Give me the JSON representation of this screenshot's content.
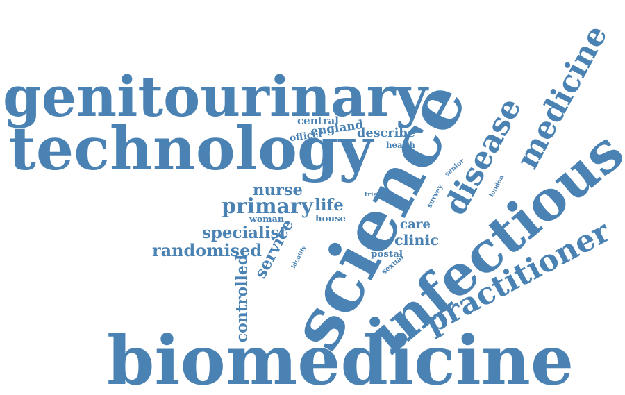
{
  "colors": {
    "word": "#4a82b3",
    "background": "#ffffff"
  },
  "words": [
    {
      "id": "genitourinary",
      "text": "genitourinary",
      "weight": 0.92,
      "rotation": 0
    },
    {
      "id": "technology",
      "text": "technology",
      "weight": 0.95,
      "rotation": 0
    },
    {
      "id": "biomedicine",
      "text": "biomedicine",
      "weight": 1.0,
      "rotation": 0
    },
    {
      "id": "science",
      "text": "science",
      "weight": 1.0,
      "rotation": -62
    },
    {
      "id": "infectious",
      "text": "infectious",
      "weight": 0.82,
      "rotation": -40
    },
    {
      "id": "medicine",
      "text": "medicine",
      "weight": 0.62,
      "rotation": -62
    },
    {
      "id": "disease",
      "text": "disease",
      "weight": 0.58,
      "rotation": -62
    },
    {
      "id": "practitioner",
      "text": "practitioner",
      "weight": 0.55,
      "rotation": -28
    },
    {
      "id": "primary",
      "text": "primary",
      "weight": 0.26,
      "rotation": 0
    },
    {
      "id": "randomised",
      "text": "randomised",
      "weight": 0.24,
      "rotation": 0
    },
    {
      "id": "nurse",
      "text": "nurse",
      "weight": 0.2,
      "rotation": 0
    },
    {
      "id": "specialist",
      "text": "specialist",
      "weight": 0.2,
      "rotation": 0
    },
    {
      "id": "life",
      "text": "life",
      "weight": 0.22,
      "rotation": 0
    },
    {
      "id": "service",
      "text": "service",
      "weight": 0.2,
      "rotation": -62
    },
    {
      "id": "controlled",
      "text": "controlled",
      "weight": 0.18,
      "rotation": -90
    },
    {
      "id": "clinic",
      "text": "clinic",
      "weight": 0.2,
      "rotation": 0
    },
    {
      "id": "care",
      "text": "care",
      "weight": 0.17,
      "rotation": 0
    },
    {
      "id": "describe",
      "text": "describe",
      "weight": 0.17,
      "rotation": 0
    },
    {
      "id": "england",
      "text": "england",
      "weight": 0.15,
      "rotation": -8
    },
    {
      "id": "central",
      "text": "central",
      "weight": 0.13,
      "rotation": 0
    },
    {
      "id": "officer",
      "text": "officer",
      "weight": 0.12,
      "rotation": -8
    },
    {
      "id": "health",
      "text": "health",
      "weight": 0.12,
      "rotation": 0
    },
    {
      "id": "woman",
      "text": "woman",
      "weight": 0.12,
      "rotation": 0
    },
    {
      "id": "house",
      "text": "house",
      "weight": 0.12,
      "rotation": 0
    },
    {
      "id": "identify",
      "text": "identify",
      "weight": 0.1,
      "rotation": -62
    },
    {
      "id": "postal",
      "text": "postal",
      "weight": 0.1,
      "rotation": 0
    },
    {
      "id": "sexual",
      "text": "sexual",
      "weight": 0.1,
      "rotation": -40
    },
    {
      "id": "survey",
      "text": "survey",
      "weight": 0.1,
      "rotation": -62
    },
    {
      "id": "london",
      "text": "london",
      "weight": 0.1,
      "rotation": -62
    },
    {
      "id": "senior",
      "text": "senior",
      "weight": 0.09,
      "rotation": -40
    },
    {
      "id": "trial",
      "text": "trial",
      "weight": 0.08,
      "rotation": 0
    }
  ]
}
